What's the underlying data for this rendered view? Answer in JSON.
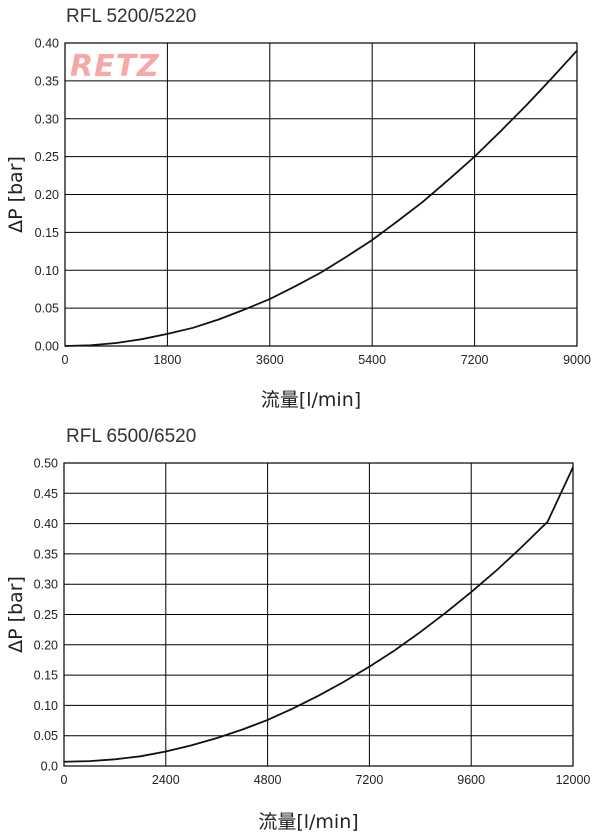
{
  "logo_text": "RETZ",
  "chart_data": [
    {
      "type": "line",
      "title": "RFL 5200/5220",
      "xlabel": "流量[l/min]",
      "ylabel": "ΔP [bar]",
      "xlim": [
        0,
        9000
      ],
      "ylim": [
        0,
        0.4
      ],
      "x_ticks": [
        0,
        1800,
        3600,
        5400,
        7200,
        9000
      ],
      "y_ticks": [
        "0.00",
        "0.05",
        "0.10",
        "0.15",
        "0.20",
        "0.25",
        "0.30",
        "0.35",
        "0.40"
      ],
      "grid": true,
      "series": [
        {
          "x": [
            0,
            450,
            900,
            1350,
            1800,
            2250,
            2700,
            3150,
            3600,
            4050,
            4500,
            4950,
            5400,
            5850,
            6300,
            6750,
            7200,
            7650,
            8100,
            8550,
            9000
          ],
          "values": [
            0.0,
            0.001,
            0.004,
            0.009,
            0.016,
            0.024,
            0.035,
            0.048,
            0.062,
            0.079,
            0.097,
            0.118,
            0.14,
            0.165,
            0.191,
            0.22,
            0.25,
            0.283,
            0.317,
            0.353,
            0.39
          ]
        }
      ]
    },
    {
      "type": "line",
      "title": "RFL 6500/6520",
      "xlabel": "流量[l/min]",
      "ylabel": "ΔP [bar]",
      "xlim": [
        0,
        12000
      ],
      "ylim": [
        0,
        0.5
      ],
      "x_ticks": [
        0,
        2400,
        4800,
        7200,
        9600,
        12000
      ],
      "y_ticks": [
        "0.0",
        "0.05",
        "0.10",
        "0.15",
        "0.20",
        "0.25",
        "0.30",
        "0.35",
        "0.40",
        "0.45",
        "0.50"
      ],
      "grid": true,
      "series": [
        {
          "x": [
            0,
            600,
            1200,
            1800,
            2400,
            3000,
            3600,
            4200,
            4800,
            5400,
            6000,
            6600,
            7200,
            7800,
            8400,
            9000,
            9600,
            10200,
            10800,
            11400,
            12000
          ],
          "values": [
            0.007,
            0.008,
            0.011,
            0.016,
            0.024,
            0.034,
            0.046,
            0.06,
            0.076,
            0.095,
            0.116,
            0.139,
            0.164,
            0.191,
            0.221,
            0.253,
            0.287,
            0.323,
            0.362,
            0.403,
            0.493
          ]
        }
      ]
    }
  ]
}
